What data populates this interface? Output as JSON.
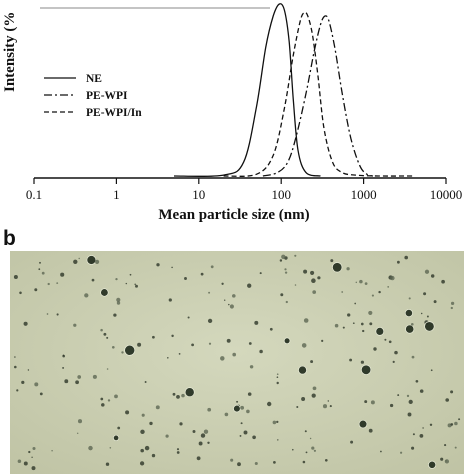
{
  "chart_data": {
    "type": "line",
    "xscale": "log",
    "xlim": [
      0.1,
      10000
    ],
    "xlabel": "Mean particle size (nm)",
    "ylabel": "Intensity (%",
    "xticks": [
      0.1,
      1,
      10,
      100,
      1000,
      10000
    ],
    "xtick_labels": [
      "0.1",
      "1",
      "10",
      "100",
      "1000",
      "10000"
    ],
    "ylim": [
      0,
      100
    ],
    "grid": false,
    "legend_position": "center-left",
    "series": [
      {
        "name": "NE",
        "dash": "solid",
        "x": [
          5,
          20,
          35,
          50,
          65,
          80,
          95,
          110,
          125,
          140,
          160,
          200,
          300
        ],
        "y": [
          0,
          0.5,
          8,
          40,
          75,
          93,
          100,
          96,
          78,
          45,
          15,
          2,
          0
        ]
      },
      {
        "name": "PE-WPI",
        "dash": "dashdot",
        "x": [
          60,
          90,
          120,
          150,
          200,
          250,
          300,
          340,
          380,
          450,
          550,
          700,
          900,
          1100,
          1300
        ],
        "y": [
          0,
          2,
          8,
          22,
          48,
          72,
          88,
          93,
          90,
          74,
          48,
          22,
          6,
          1,
          0
        ]
      },
      {
        "name": "PE-WPI/In",
        "dash": "dashed",
        "x": [
          20,
          50,
          80,
          110,
          140,
          170,
          190,
          210,
          240,
          280,
          330,
          420,
          550,
          800,
          1500,
          4000
        ],
        "y": [
          0,
          1,
          12,
          40,
          70,
          90,
          95,
          93,
          82,
          58,
          28,
          8,
          2,
          0.5,
          0,
          0
        ]
      }
    ]
  },
  "panel_b": {
    "label": "b"
  }
}
